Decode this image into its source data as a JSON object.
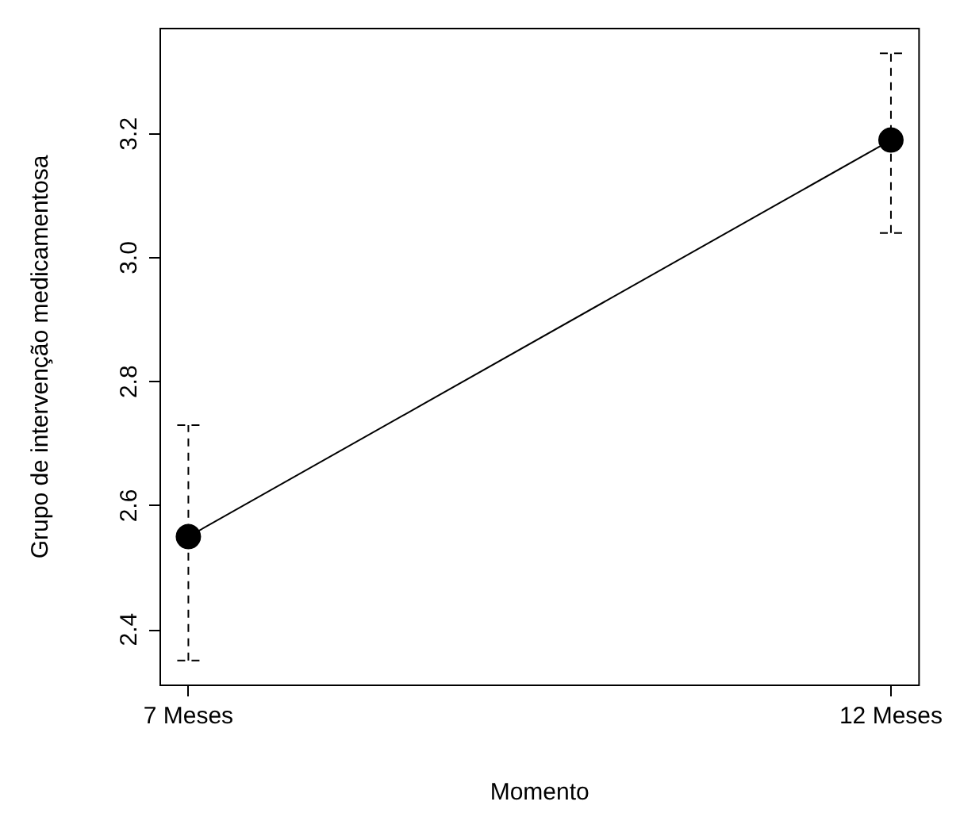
{
  "chart_data": {
    "type": "line",
    "xlabel": "Momento",
    "ylabel": "Grupo de intervenção medicamentosa",
    "categories": [
      "7 Meses",
      "12 Meses"
    ],
    "series": [
      {
        "color": "#000000",
        "values": [
          2.55,
          3.19
        ],
        "errors": [
          [
            2.35,
            2.73
          ],
          [
            3.04,
            3.33
          ]
        ]
      }
    ],
    "ylim": [
      2.31,
      3.37
    ],
    "yticks": [
      2.4,
      2.6,
      2.8,
      {
        "value": 3,
        "label": "3.0"
      },
      3.2
    ],
    "marker": "circle",
    "line_style": "solid"
  }
}
